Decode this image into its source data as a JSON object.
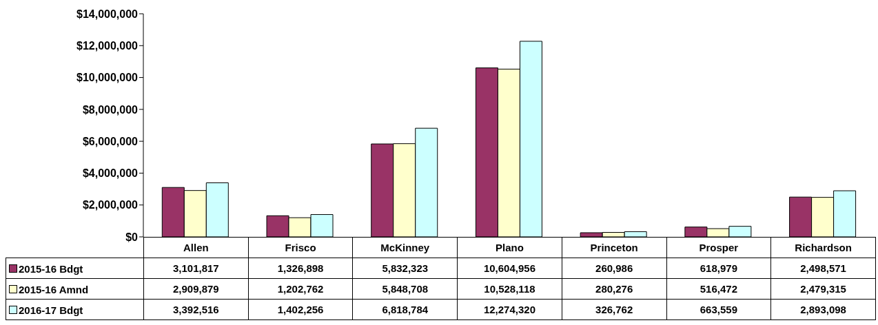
{
  "chart_data": {
    "type": "bar",
    "categories": [
      "Allen",
      "Frisco",
      "McKinney",
      "Plano",
      "Princeton",
      "Prosper",
      "Richardson"
    ],
    "series": [
      {
        "name": "2015-16 Bdgt",
        "color": "#993366",
        "values": [
          3101817,
          1326898,
          5832323,
          10604956,
          260986,
          618979,
          2498571
        ],
        "value_labels": [
          "3,101,817",
          "1,326,898",
          "5,832,323",
          "10,604,956",
          "260,986",
          "618,979",
          "2,498,571"
        ]
      },
      {
        "name": "2015-16 Amnd",
        "color": "#ffffcc",
        "values": [
          2909879,
          1202762,
          5848708,
          10528118,
          280276,
          516472,
          2479315
        ],
        "value_labels": [
          "2,909,879",
          "1,202,762",
          "5,848,708",
          "10,528,118",
          "280,276",
          "516,472",
          "2,479,315"
        ]
      },
      {
        "name": "2016-17 Bdgt",
        "color": "#ccffff",
        "values": [
          3392516,
          1402256,
          6818784,
          12274320,
          326762,
          663559,
          2893098
        ],
        "value_labels": [
          "3,392,516",
          "1,402,256",
          "6,818,784",
          "12,274,320",
          "326,762",
          "663,559",
          "2,893,098"
        ]
      }
    ],
    "ylim": [
      0,
      14000000
    ],
    "yticks": [
      {
        "value": 0,
        "label": "$0"
      },
      {
        "value": 2000000,
        "label": "$2,000,000"
      },
      {
        "value": 4000000,
        "label": "$4,000,000"
      },
      {
        "value": 6000000,
        "label": "$6,000,000"
      },
      {
        "value": 8000000,
        "label": "$8,000,000"
      },
      {
        "value": 10000000,
        "label": "$10,000,000"
      },
      {
        "value": 12000000,
        "label": "$12,000,000"
      },
      {
        "value": 14000000,
        "label": "$14,000,000"
      }
    ],
    "grid": false,
    "legend": "bottom"
  }
}
